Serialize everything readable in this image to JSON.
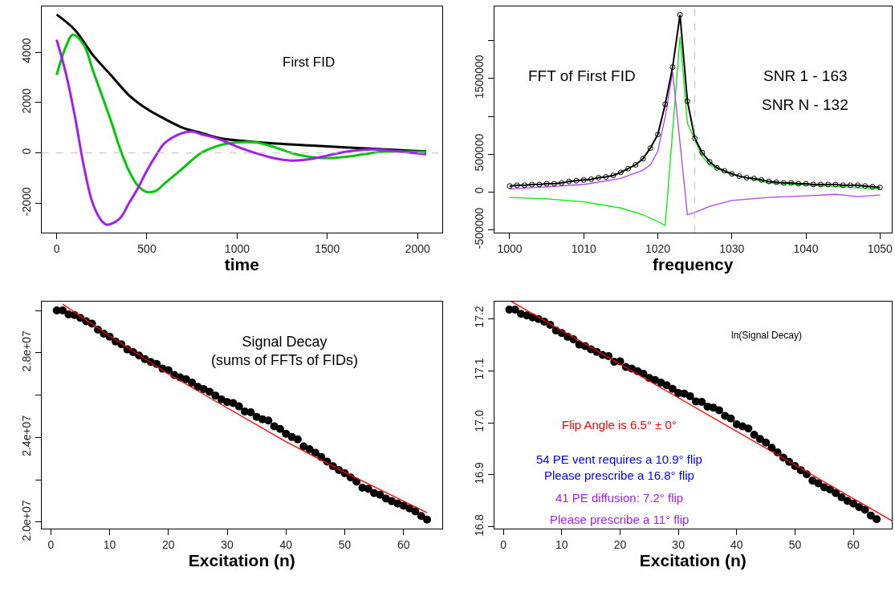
{
  "chart_data": [
    {
      "type": "line",
      "xlabel": "time",
      "annotations": [
        "First FID"
      ],
      "marker": "none",
      "xlim": [
        -84,
        2137
      ],
      "xticks": [
        0,
        500,
        1000,
        1500,
        2000
      ],
      "ylim": [
        -3163,
        5829
      ],
      "yticks": [
        -2000,
        0,
        2000,
        4000
      ],
      "ref_lines": [
        {
          "axis": "y",
          "value": 0,
          "color": "#bebebe",
          "line_style": "dashed"
        }
      ],
      "series": [
        {
          "color": "#000000",
          "x": [
            0,
            100,
            200,
            300,
            400,
            500,
            600,
            700,
            800,
            900,
            1000,
            1200,
            1400,
            1600,
            1800,
            2048
          ],
          "values": [
            5500,
            4900,
            3900,
            3100,
            2300,
            1750,
            1350,
            1000,
            800,
            600,
            500,
            380,
            300,
            220,
            150,
            60
          ]
        },
        {
          "color": "#00c800",
          "x": [
            0,
            50,
            90,
            150,
            200,
            250,
            300,
            350,
            400,
            450,
            500,
            550,
            600,
            700,
            800,
            900,
            1000,
            1100,
            1200,
            1300,
            1400,
            1500,
            1600,
            1700,
            1800,
            1900,
            2048
          ],
          "values": [
            3100,
            4200,
            4700,
            4300,
            3300,
            2300,
            1300,
            200,
            -700,
            -1300,
            -1550,
            -1500,
            -1200,
            -600,
            0,
            300,
            420,
            420,
            250,
            0,
            -150,
            -200,
            -150,
            -50,
            50,
            60,
            50
          ]
        },
        {
          "color": "#a020f0",
          "x": [
            0,
            50,
            100,
            150,
            200,
            250,
            280,
            350,
            400,
            450,
            500,
            550,
            600,
            700,
            750,
            800,
            900,
            1000,
            1100,
            1200,
            1300,
            1400,
            1500,
            1600,
            1700,
            1800,
            1900,
            2048
          ],
          "values": [
            4500,
            3200,
            1500,
            -500,
            -2000,
            -2700,
            -2850,
            -2600,
            -2000,
            -1400,
            -700,
            -100,
            400,
            800,
            850,
            750,
            550,
            250,
            0,
            -200,
            -300,
            -250,
            -100,
            50,
            130,
            130,
            60,
            -50
          ]
        }
      ]
    },
    {
      "type": "line",
      "xlabel": "frequency",
      "annotations": [
        "FFT of First FID",
        "SNR 1 - 163",
        "SNR N - 132"
      ],
      "xlim": [
        997.9,
        1051.6
      ],
      "xticks": [
        1000,
        1010,
        1020,
        1030,
        1040,
        1050
      ],
      "ylim": [
        -536000,
        2454000
      ],
      "yticks": [
        -500000,
        0,
        500000,
        {
          "value": 1000000,
          "label": null
        },
        1500000,
        {
          "value": 2000000,
          "label": null
        }
      ],
      "ref_lines": [
        {
          "axis": "x",
          "value": 1025,
          "color": "#bebebe",
          "line_style": "dashed"
        }
      ],
      "x": [
        1000,
        1001,
        1002,
        1003,
        1004,
        1005,
        1006,
        1007,
        1008,
        1009,
        1010,
        1011,
        1012,
        1013,
        1014,
        1015,
        1016,
        1017,
        1018,
        1019,
        1020,
        1021,
        1022,
        1023,
        1024,
        1025,
        1026,
        1027,
        1028,
        1029,
        1030,
        1031,
        1032,
        1033,
        1034,
        1035,
        1036,
        1037,
        1038,
        1039,
        1040,
        1041,
        1042,
        1043,
        1044,
        1045,
        1046,
        1047,
        1048,
        1049,
        1050
      ],
      "series": [
        {
          "color": "#00ee00",
          "x": [
            1000,
            1005,
            1010,
            1015,
            1018,
            1020,
            1021,
            1022,
            1023,
            1024,
            1025,
            1026,
            1027,
            1028,
            1030,
            1035,
            1040,
            1045,
            1050
          ],
          "values": [
            -70000,
            -90000,
            -130000,
            -210000,
            -300000,
            -390000,
            -440000,
            800000,
            2050000,
            910000,
            690000,
            470000,
            360000,
            310000,
            230000,
            120000,
            90000,
            70000,
            40000
          ]
        },
        {
          "color": "#b040ff",
          "x": [
            1000,
            1005,
            1010,
            1015,
            1018,
            1019,
            1020,
            1021,
            1022,
            1023,
            1024,
            1025,
            1027,
            1030,
            1035,
            1040,
            1044,
            1045,
            1047,
            1050
          ],
          "values": [
            40000,
            70000,
            100000,
            180000,
            290000,
            360000,
            540000,
            990000,
            1590000,
            650000,
            -300000,
            -270000,
            -190000,
            -110000,
            -70000,
            -50000,
            -30000,
            -40000,
            -60000,
            -40000
          ]
        },
        {
          "color": "#000000",
          "marker": "circle",
          "values": [
            80000,
            90000,
            90000,
            100000,
            100000,
            110000,
            110000,
            120000,
            140000,
            150000,
            160000,
            170000,
            190000,
            200000,
            220000,
            260000,
            310000,
            360000,
            440000,
            580000,
            760000,
            1160000,
            1650000,
            2340000,
            1200000,
            710000,
            520000,
            400000,
            320000,
            280000,
            240000,
            210000,
            190000,
            180000,
            160000,
            140000,
            130000,
            120000,
            120000,
            110000,
            110000,
            100000,
            100000,
            100000,
            100000,
            90000,
            90000,
            90000,
            80000,
            70000,
            60000
          ]
        }
      ]
    },
    {
      "type": "scatter",
      "xlabel": "Excitation (n)",
      "annotations": [
        "Signal Decay\n(sums of FFTs of FIDs)"
      ],
      "marker": "circle",
      "xlim": [
        -1.6,
        66.6
      ],
      "xticks": [
        0,
        10,
        20,
        30,
        40,
        50,
        60
      ],
      "ylim": [
        19700000,
        30430000
      ],
      "yticks": [
        {
          "value": 20000000,
          "label": "2.0e+07"
        },
        {
          "value": 22000000,
          "label": null
        },
        {
          "value": 24000000,
          "label": "2.4e+07"
        },
        {
          "value": 26000000,
          "label": null
        },
        {
          "value": 28000000,
          "label": "2.8e+07"
        },
        {
          "value": 30000000,
          "label": null
        }
      ],
      "x": [
        1,
        2,
        3,
        4,
        5,
        6,
        7,
        8,
        9,
        10,
        11,
        12,
        13,
        14,
        15,
        16,
        17,
        18,
        19,
        20,
        21,
        22,
        23,
        24,
        25,
        26,
        27,
        28,
        29,
        30,
        31,
        32,
        33,
        34,
        35,
        36,
        37,
        38,
        39,
        40,
        41,
        42,
        43,
        44,
        45,
        46,
        47,
        48,
        49,
        50,
        51,
        52,
        53,
        54,
        55,
        56,
        57,
        58,
        59,
        60,
        61,
        62,
        63,
        64
      ],
      "series": [
        {
          "color": "#000000",
          "values": [
            30000000,
            30000000,
            29810000,
            29780000,
            29650000,
            29490000,
            29380000,
            29090000,
            28900000,
            28760000,
            28530000,
            28400000,
            28160000,
            28030000,
            27870000,
            27700000,
            27570000,
            27470000,
            27250000,
            27180000,
            26950000,
            26840000,
            26750000,
            26590000,
            26390000,
            26290000,
            26160000,
            25980000,
            25800000,
            25670000,
            25630000,
            25470000,
            25230000,
            25190000,
            24970000,
            24860000,
            24800000,
            24530000,
            24400000,
            24180000,
            24020000,
            23910000,
            23580000,
            23450000,
            23280000,
            23080000,
            22860000,
            22640000,
            22460000,
            22310000,
            22110000,
            21910000,
            21630000,
            21570000,
            21370000,
            21300000,
            21120000,
            20990000,
            20880000,
            20780000,
            20650000,
            20510000,
            20290000,
            20120000
          ]
        },
        {
          "type": "line",
          "marker": "none",
          "color": "#ff0000",
          "x": [
            2,
            10,
            20,
            30,
            40,
            50,
            64
          ],
          "values": [
            30300000,
            28800000,
            27000000,
            25400000,
            23800000,
            22350000,
            20450000
          ]
        }
      ]
    },
    {
      "type": "scatter",
      "xlabel": "Excitation (n)",
      "marker": "circle",
      "annotations": [
        "ln(Signal Decay)",
        "Flip Angle is 6.5° ± 0°",
        "54 PE vent requires a 10.9° flip",
        "Please prescribe a 16.8° flip",
        "41 PE diffusion: 7.2° flip",
        "Please prescribe a 11° flip"
      ],
      "xlim": [
        -1.6,
        66.6
      ],
      "xticks": [
        0,
        10,
        20,
        30,
        40,
        50,
        60
      ],
      "ylim": [
        16.797,
        17.233
      ],
      "yticks": [
        16.8,
        16.9,
        {
          "value": 17,
          "label": "17.0"
        },
        17.1,
        17.2
      ],
      "x": [
        1,
        2,
        3,
        4,
        5,
        6,
        7,
        8,
        9,
        10,
        11,
        12,
        13,
        14,
        15,
        16,
        17,
        18,
        19,
        20,
        21,
        22,
        23,
        24,
        25,
        26,
        27,
        28,
        29,
        30,
        31,
        32,
        33,
        34,
        35,
        36,
        37,
        38,
        39,
        40,
        41,
        42,
        43,
        44,
        45,
        46,
        47,
        48,
        49,
        50,
        51,
        52,
        53,
        54,
        55,
        56,
        57,
        58,
        59,
        60,
        61,
        62,
        63,
        64
      ],
      "series": [
        {
          "color": "#000000",
          "values": [
            17.217,
            17.217,
            17.209,
            17.206,
            17.202,
            17.199,
            17.194,
            17.188,
            17.177,
            17.172,
            17.165,
            17.16,
            17.15,
            17.147,
            17.141,
            17.136,
            17.13,
            17.128,
            17.117,
            17.118,
            17.107,
            17.104,
            17.099,
            17.094,
            17.086,
            17.082,
            17.077,
            17.072,
            17.065,
            17.057,
            17.056,
            17.051,
            17.041,
            17.04,
            17.031,
            17.029,
            17.024,
            17.013,
            17.008,
            16.997,
            16.993,
            16.989,
            16.977,
            16.969,
            16.962,
            16.952,
            16.943,
            16.933,
            16.925,
            16.917,
            16.909,
            16.901,
            16.889,
            16.884,
            16.876,
            16.872,
            16.865,
            16.857,
            16.85,
            16.845,
            16.838,
            16.833,
            16.822,
            16.815
          ]
        },
        {
          "type": "line",
          "marker": "none",
          "color": "#ff0000",
          "x": [
            1.3,
            66.6
          ],
          "values": [
            17.233,
            16.812
          ]
        }
      ]
    }
  ]
}
